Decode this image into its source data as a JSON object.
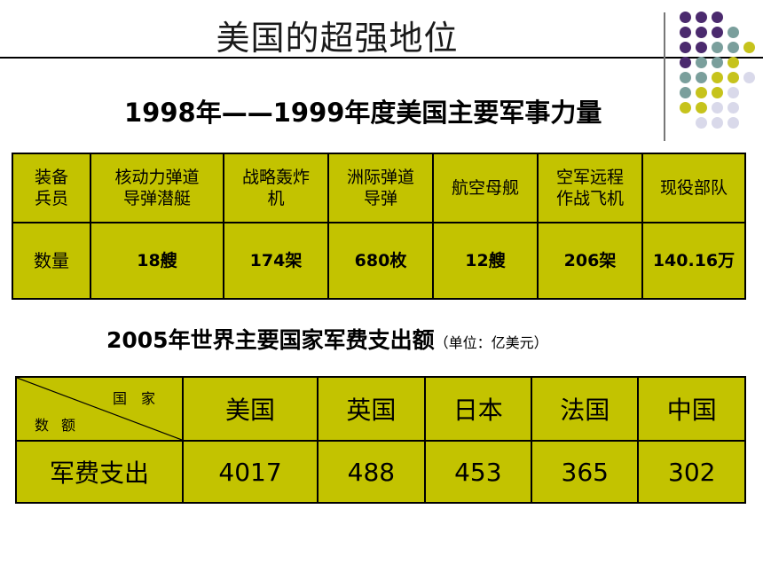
{
  "slide": {
    "title": "美国的超强地位",
    "subtitle1": "1998年——1999年度美国主要军事力量",
    "subtitle2": "2005年世界主要国家军费支出额",
    "subtitle2_unit": "（单位：亿美元）"
  },
  "colors": {
    "table_fill": "#c3c300",
    "dot_purple": "#4b2a6e",
    "dot_teal": "#7a9f9c",
    "dot_yellow": "#c6c31c",
    "dot_lavender": "#d9d9ea"
  },
  "table1": {
    "header_label": "装备\n兵员",
    "columns": [
      "核动力弹道\n导弹潜艇",
      "战略轰炸\n机",
      "洲际弹道\n导弹",
      "航空母舰",
      "空军远程\n作战飞机",
      "现役部队"
    ],
    "row_label": "数量",
    "values": [
      "18艘",
      "174架",
      "680枚",
      "12艘",
      "206架",
      "140.16万"
    ]
  },
  "table2": {
    "corner_top": "国家",
    "corner_bottom": "数额",
    "columns": [
      "美国",
      "英国",
      "日本",
      "法国",
      "中国"
    ],
    "row_label": "军费支出",
    "values": [
      "4017",
      "488",
      "453",
      "365",
      "302"
    ]
  }
}
